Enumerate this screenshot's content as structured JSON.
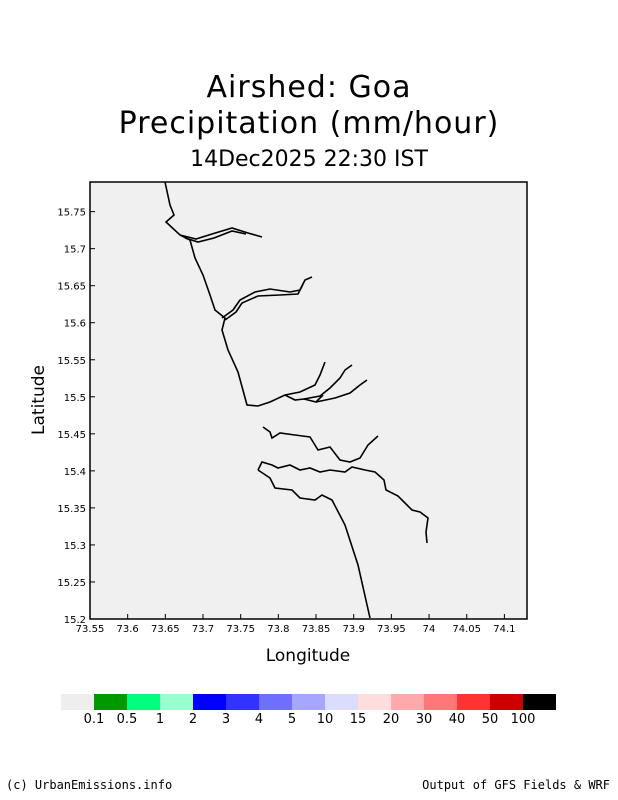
{
  "header": {
    "line1": "Airshed: Goa",
    "line2": "Precipitation (mm/hour)",
    "line3": "14Dec2025 22:30 IST"
  },
  "axes": {
    "xlabel": "Longitude",
    "ylabel": "Latitude",
    "xticks": [
      "73.55",
      "73.6",
      "73.65",
      "73.7",
      "73.75",
      "73.8",
      "73.85",
      "73.9",
      "73.95",
      "74",
      "74.05",
      "74.1"
    ],
    "yticks": [
      "15.2",
      "15.25",
      "15.3",
      "15.35",
      "15.4",
      "15.45",
      "15.5",
      "15.55",
      "15.6",
      "15.65",
      "15.7",
      "15.75"
    ],
    "xlim": [
      73.55,
      74.13
    ],
    "ylim": [
      15.2,
      15.79
    ]
  },
  "colorbar": {
    "colors": [
      "#eeeeee",
      "#009900",
      "#00ff7f",
      "#99ffcc",
      "#0000ff",
      "#3333ff",
      "#6f6fff",
      "#a6a6ff",
      "#dcdcff",
      "#ffdddd",
      "#ffaaaa",
      "#ff7777",
      "#ff3333",
      "#cc0000",
      "#000000"
    ],
    "labels": [
      "0.1",
      "0.5",
      "1",
      "2",
      "3",
      "4",
      "5",
      "10",
      "15",
      "20",
      "30",
      "40",
      "50",
      "100"
    ]
  },
  "footer": {
    "left": "(c) UrbanEmissions.info",
    "right": "Output of GFS Fields & WRF"
  }
}
